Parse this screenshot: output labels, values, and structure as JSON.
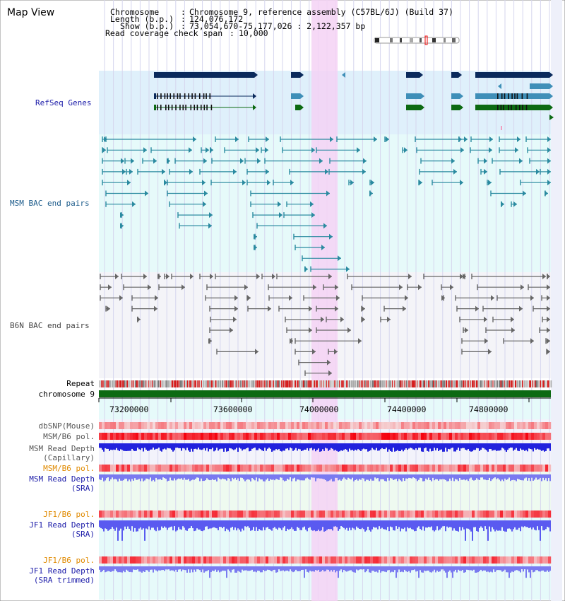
{
  "title": "Map View",
  "header": {
    "chromosome_key": "Chromosome",
    "chromosome_val": "Chromosome 9, reference assembly (C57BL/6J) (Build 37)",
    "length_key": "Length (b.p.)",
    "length_val": "124,076,172",
    "show_key": "Show (b.p.)",
    "show_val": "73,054,670-75,177,026 : 2,122,357 bp",
    "coverage_key": "Read coverage check span",
    "coverage_val": "10,000"
  },
  "tracks": {
    "refseq": "RefSeq Genes",
    "msm_bac": "MSM BAC end pairs",
    "b6n_bac": "B6N BAC end pairs",
    "repeat": "Repeat",
    "chromosome": "chromosome 9",
    "dbsnp": "dbSNP(Mouse)",
    "msm_b6_pol_1": "MSM/B6 pol.",
    "msm_depth_cap_1": "MSM Read Depth",
    "msm_depth_cap_2": "(Capillary)",
    "msm_b6_pol_2": "MSM/B6 pol.",
    "msm_depth_sra_1": "MSM Read Depth",
    "msm_depth_sra_2": "(SRA)",
    "jf1_pol_1": "JF1/B6 pol.",
    "jf1_depth_sra_1": "JF1 Read Depth",
    "jf1_depth_sra_2": "(SRA)",
    "jf1_pol_2": "JF1/B6 pol.",
    "jf1_depth_trim_1": "JF1 Read Depth",
    "jf1_depth_trim_2": "(SRA trimmed)"
  },
  "axis": {
    "ticks": [
      "73200000",
      "73600000",
      "74000000",
      "74400000",
      "74800000"
    ]
  },
  "colors": {
    "refseq_bg": "#dff0fb",
    "msm_bg": "#e6fafa",
    "b6n_bg": "#f4f4f8",
    "highlight": "#f4d2f4",
    "gene_dark": "#0a2a5c",
    "gene_mid": "#3f8fb8",
    "gene_green": "#0c6a12",
    "msm_pair": "#2a8aa0",
    "b6n_pair": "#666666",
    "chromosome_bar": "#0c6a12",
    "pol_red": "#ee2a2a",
    "depth_blue": "#2222dd",
    "sra_blue": "#7a7af0",
    "label_orange": "#e08a00",
    "label_navy": "#1a1aa8"
  }
}
